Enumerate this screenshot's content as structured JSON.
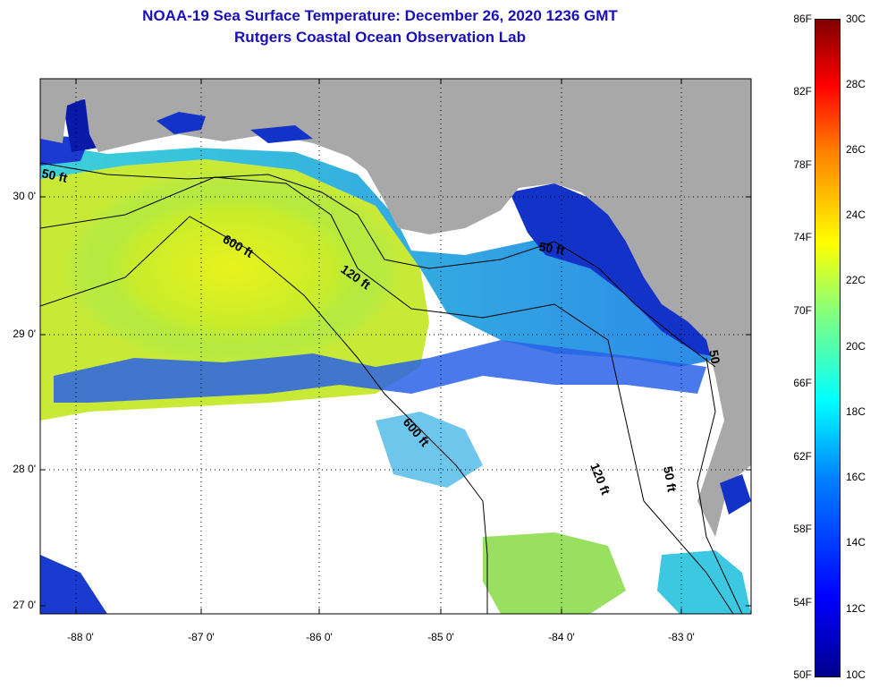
{
  "title": {
    "line1": "NOAA-19 Sea Surface Temperature:  December 26, 2020 1236 GMT",
    "line2": "Rutgers Coastal Ocean Observation Lab"
  },
  "map": {
    "lat_labels": [
      "30 0'",
      "29 0'",
      "28 0'",
      "27 0'"
    ],
    "lon_labels": [
      "-88 0'",
      "-87 0'",
      "-86 0'",
      "-85 0'",
      "-84 0'",
      "-83 0'"
    ],
    "contour_labels": [
      "50 ft",
      "600 ft",
      "120 ft",
      "50 ft",
      "600 ft",
      "120 ft",
      "50 ft",
      "50"
    ],
    "colors": {
      "land": "#a8a8a8",
      "cloud": "#ffffff",
      "gridline": "#000000"
    }
  },
  "colorbar": {
    "fahrenheit_labels": [
      "86F",
      "82F",
      "78F",
      "74F",
      "70F",
      "66F",
      "62F",
      "58F",
      "54F",
      "50F"
    ],
    "celsius_labels": [
      "30C",
      "28C",
      "26C",
      "24C",
      "22C",
      "20C",
      "18C",
      "16C",
      "14C",
      "12C",
      "10C"
    ],
    "range_celsius": [
      10,
      30
    ]
  }
}
